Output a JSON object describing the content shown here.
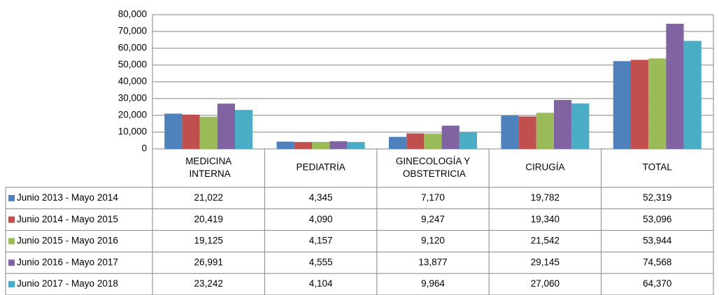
{
  "chart_data": {
    "type": "bar",
    "categories": [
      "MEDICINA INTERNA",
      "PEDIATRÍA",
      "GINECOLOGÍA Y OBSTETRICIA",
      "CIRUGÍA",
      "TOTAL"
    ],
    "series": [
      {
        "name": "Junio 2013 - Mayo 2014",
        "color": "#4f81bd",
        "values": [
          21022,
          4345,
          7170,
          19782,
          52319
        ],
        "value_labels": [
          "21,022",
          "4,345",
          "7,170",
          "19,782",
          "52,319"
        ]
      },
      {
        "name": "Junio 2014 - Mayo 2015",
        "color": "#c0504d",
        "values": [
          20419,
          4090,
          9247,
          19340,
          53096
        ],
        "value_labels": [
          "20,419",
          "4,090",
          "9,247",
          "19,340",
          "53,096"
        ]
      },
      {
        "name": "Junio 2015 - Mayo 2016",
        "color": "#9bbb59",
        "values": [
          19125,
          4157,
          9120,
          21542,
          53944
        ],
        "value_labels": [
          "19,125",
          "4,157",
          "9,120",
          "21,542",
          "53,944"
        ]
      },
      {
        "name": "Junio 2016 - Mayo 2017",
        "color": "#8064a2",
        "values": [
          26991,
          4555,
          13877,
          29145,
          74568
        ],
        "value_labels": [
          "26,991",
          "4,555",
          "13,877",
          "29,145",
          "74,568"
        ]
      },
      {
        "name": "Junio 2017 - Mayo 2018",
        "color": "#4bacc6",
        "values": [
          23242,
          4104,
          9964,
          27060,
          64370
        ],
        "value_labels": [
          "23,242",
          "4,104",
          "9,964",
          "27,060",
          "64,370"
        ]
      }
    ],
    "ylim": [
      0,
      80000
    ],
    "yticks": [
      0,
      {
        "value": 10000,
        "label": "10,000"
      },
      {
        "value": 20000,
        "label": "20,000"
      },
      {
        "value": 30000,
        "label": "30,000"
      },
      {
        "value": 40000,
        "label": "40,000"
      },
      {
        "value": 50000,
        "label": "50,000"
      },
      {
        "value": 60000,
        "label": "60,000"
      },
      {
        "value": 70000,
        "label": "70,000"
      },
      {
        "value": 80000,
        "label": "80,000"
      }
    ],
    "grid": true
  }
}
